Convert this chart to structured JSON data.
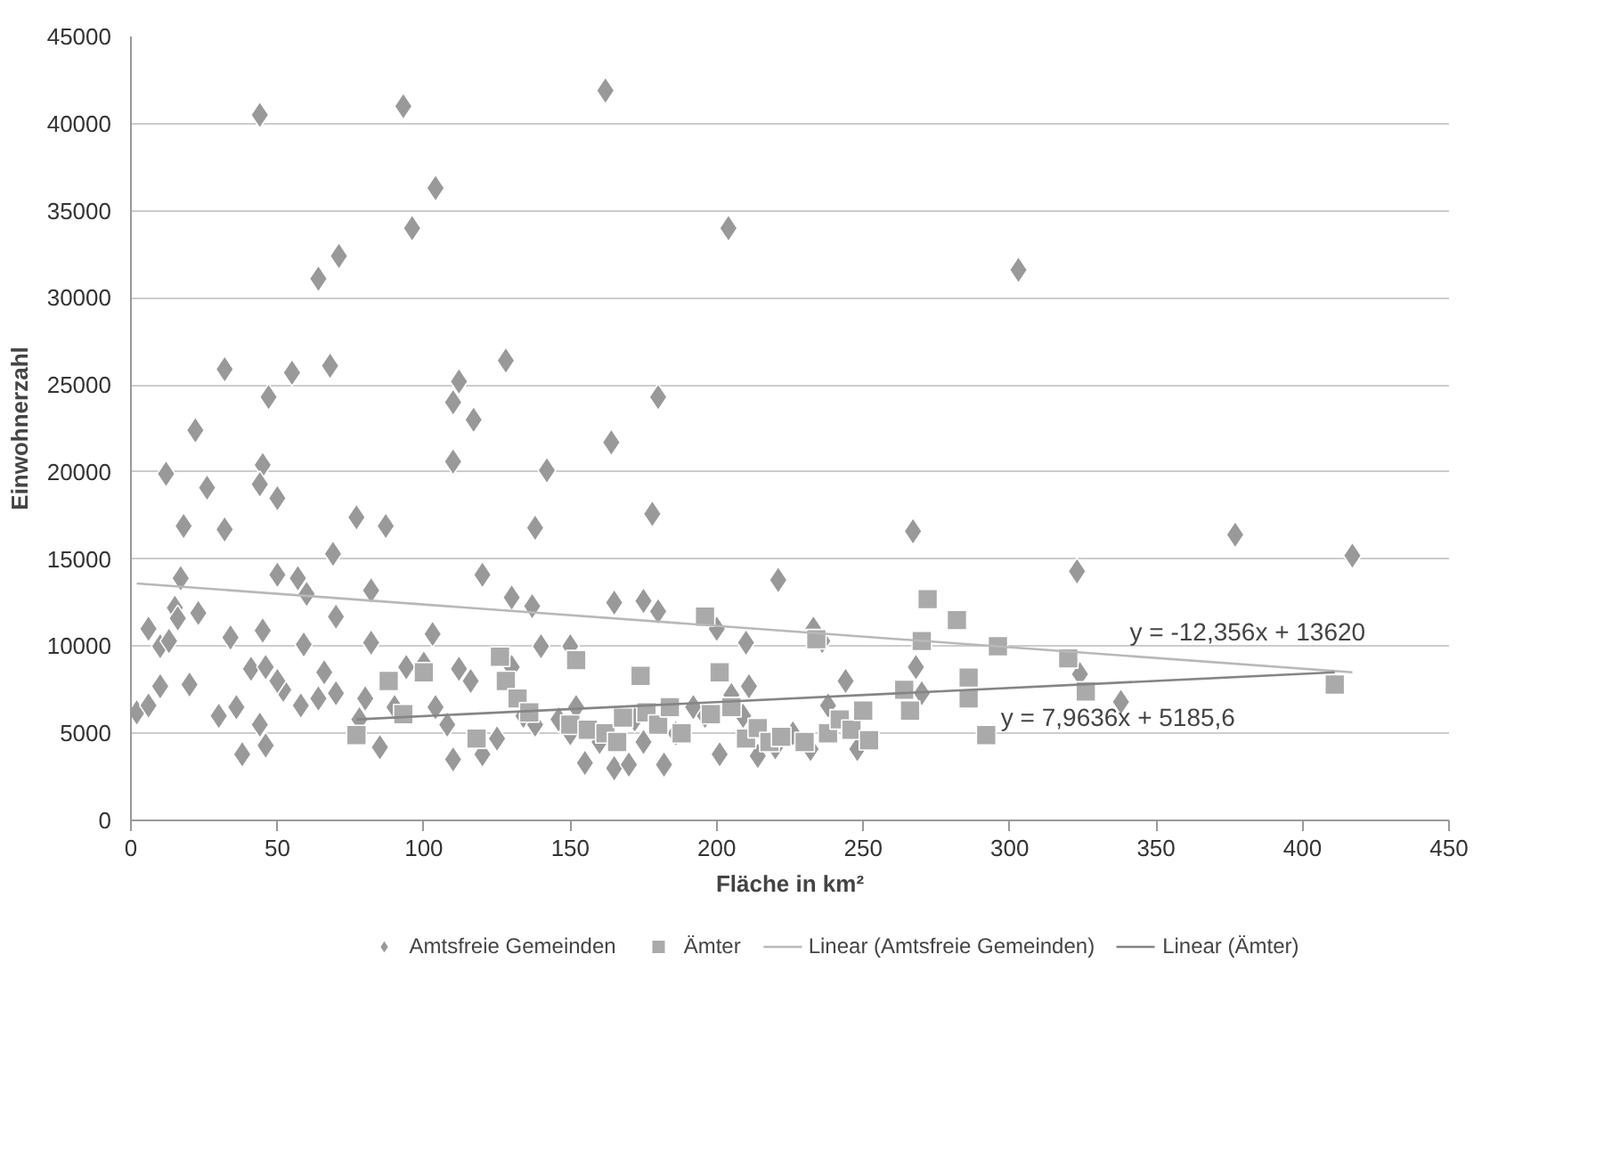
{
  "chart_data": {
    "type": "scatter",
    "xlabel": "Fläche in km²",
    "ylabel": "Einwohnerzahl",
    "xlim": [
      0,
      450
    ],
    "xticks": [
      0,
      50,
      100,
      150,
      200,
      250,
      300,
      350,
      400,
      450
    ],
    "ylim": [
      0,
      45000
    ],
    "yticks": [
      0,
      5000,
      10000,
      15000,
      20000,
      25000,
      30000,
      35000,
      40000,
      45000
    ],
    "grid": "y",
    "legend": "bottom",
    "series": [
      {
        "name": "Amtsfreie Gemeinden",
        "type": "scatter",
        "marker": "diamond",
        "color": "#999999",
        "x": [
          44,
          93,
          162,
          104,
          96,
          204,
          71,
          64,
          303,
          32,
          68,
          55,
          128,
          112,
          47,
          110,
          180,
          117,
          22,
          110,
          142,
          45,
          12,
          44,
          26,
          50,
          164,
          178,
          77,
          87,
          18,
          32,
          138,
          267,
          377,
          417,
          69,
          323,
          50,
          120,
          57,
          17,
          221,
          82,
          130,
          165,
          60,
          175,
          137,
          180,
          15,
          16,
          23,
          6,
          70,
          45,
          34,
          82,
          59,
          103,
          150,
          140,
          210,
          233,
          200,
          10,
          13,
          2,
          6,
          10,
          20,
          30,
          36,
          38,
          41,
          44,
          46,
          46,
          52,
          50,
          58,
          64,
          66,
          70,
          78,
          80,
          85,
          90,
          94,
          100,
          104,
          108,
          110,
          112,
          116,
          120,
          125,
          130,
          134,
          138,
          146,
          150,
          152,
          155,
          160,
          165,
          170,
          172,
          175,
          182,
          186,
          192,
          196,
          201,
          205,
          209,
          211,
          214,
          220,
          226,
          232,
          236,
          238,
          244,
          248,
          268,
          270,
          324,
          338
        ],
        "values": [
          40500,
          41000,
          41900,
          36300,
          34000,
          34000,
          32400,
          31100,
          31600,
          25900,
          26100,
          25700,
          26400,
          25200,
          24300,
          24000,
          24300,
          23000,
          22400,
          20600,
          20100,
          20400,
          19900,
          19300,
          19100,
          18500,
          21700,
          17600,
          17400,
          16900,
          16900,
          16700,
          16800,
          16600,
          16400,
          15200,
          15300,
          14300,
          14100,
          14100,
          13900,
          13900,
          13800,
          13200,
          12800,
          12500,
          13000,
          12600,
          12300,
          12000,
          12200,
          11600,
          11900,
          11000,
          11700,
          10900,
          10500,
          10200,
          10100,
          10700,
          10000,
          10000,
          10200,
          11000,
          11000,
          10000,
          10300,
          6200,
          6600,
          7700,
          7800,
          6000,
          6500,
          3800,
          8700,
          5500,
          4300,
          8800,
          7500,
          8000,
          6600,
          7000,
          8500,
          7300,
          5800,
          7000,
          4200,
          6500,
          8800,
          9000,
          6500,
          5500,
          3500,
          8700,
          8000,
          3800,
          4700,
          8800,
          6000,
          5500,
          5800,
          5000,
          6500,
          3300,
          4500,
          3000,
          3200,
          5800,
          4500,
          3200,
          5000,
          6500,
          6000,
          3800,
          7200,
          6000,
          7700,
          3700,
          4200,
          5000,
          4100,
          10300,
          6600,
          8000,
          4100,
          8800,
          7300,
          8400,
          6800
        ]
      },
      {
        "name": "Ämter",
        "type": "scatter",
        "marker": "square",
        "color": "#aaaaaa",
        "x": [
          77,
          88,
          93,
          100,
          118,
          126,
          128,
          132,
          136,
          150,
          152,
          156,
          162,
          166,
          168,
          174,
          176,
          180,
          184,
          188,
          196,
          198,
          201,
          205,
          210,
          214,
          218,
          222,
          230,
          234,
          238,
          242,
          246,
          250,
          252,
          264,
          266,
          270,
          272,
          282,
          286,
          286,
          292,
          296,
          320,
          326,
          411
        ],
        "values": [
          4900,
          8000,
          6100,
          8500,
          4700,
          9400,
          8000,
          7000,
          6200,
          5500,
          9200,
          5200,
          5000,
          4500,
          5900,
          8300,
          6200,
          5500,
          6500,
          5000,
          11700,
          6100,
          8500,
          6500,
          4700,
          5300,
          4500,
          4800,
          4500,
          10400,
          5000,
          5800,
          5200,
          6300,
          4600,
          7500,
          6300,
          10300,
          12700,
          11500,
          8200,
          7000,
          4900,
          10000,
          9300,
          7400,
          7800
        ]
      },
      {
        "name": "Linear (Amtsfreie Gemeinden)",
        "type": "line",
        "color": "#b8b8b8",
        "x": [
          2,
          417
        ],
        "values": [
          13600,
          8500
        ]
      },
      {
        "name": "Linear (Ämter)",
        "type": "line",
        "color": "#858585",
        "x": [
          77,
          411
        ],
        "values": [
          5800,
          8500
        ]
      }
    ],
    "annotations": [
      {
        "text": "y = -12,356x + 13620",
        "x": 341,
        "y": 9400
      },
      {
        "text": "y = 7,9636x + 5185,6",
        "x": 297,
        "y": 7550
      }
    ]
  }
}
